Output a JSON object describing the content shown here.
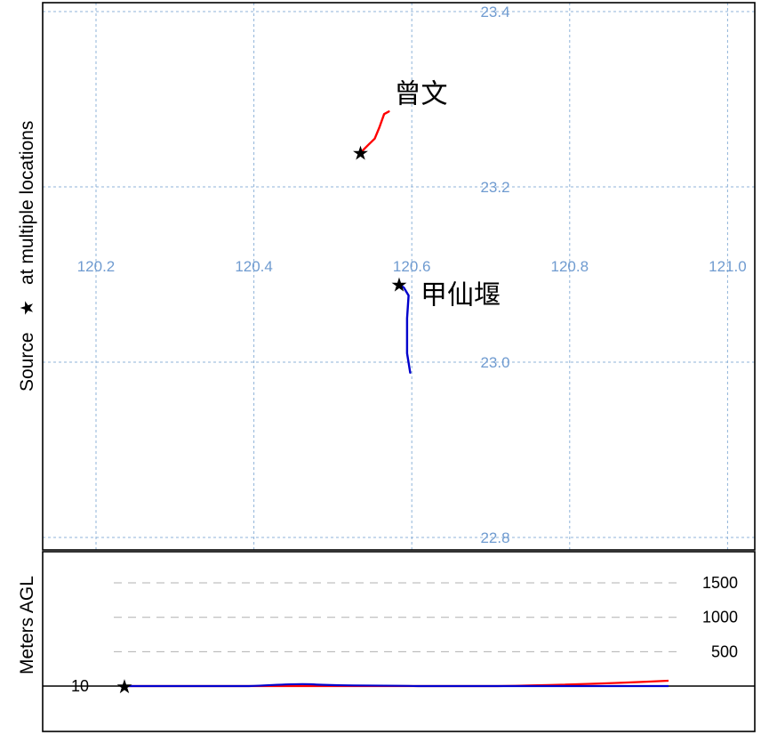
{
  "map": {
    "y_axis_label_prefix": "Source",
    "y_axis_label_suffix": "at multiple locations",
    "longitude_ticks": [
      "120.2",
      "120.4",
      "120.6",
      "120.8",
      "121.0"
    ],
    "latitude_ticks": [
      "23.4",
      "23.2",
      "23.0",
      "22.8"
    ],
    "longitude_values": [
      120.2,
      120.4,
      120.6,
      120.8,
      121.0
    ],
    "latitude_values": [
      23.4,
      23.2,
      23.0,
      22.8
    ],
    "trajectories": [
      {
        "label": "曾文",
        "color": "#ff0000",
        "source": {
          "lon": 120.535,
          "lat": 23.239
        },
        "path": [
          {
            "lon": 120.535,
            "lat": 23.239
          },
          {
            "lon": 120.545,
            "lat": 23.248
          },
          {
            "lon": 120.553,
            "lat": 23.255
          },
          {
            "lon": 120.559,
            "lat": 23.268
          },
          {
            "lon": 120.565,
            "lat": 23.283
          },
          {
            "lon": 120.571,
            "lat": 23.286
          }
        ]
      },
      {
        "label": "甲仙堰",
        "color": "#0000cc",
        "source": {
          "lon": 120.584,
          "lat": 23.089
        },
        "path": [
          {
            "lon": 120.584,
            "lat": 23.089
          },
          {
            "lon": 120.59,
            "lat": 23.085
          },
          {
            "lon": 120.596,
            "lat": 23.076
          },
          {
            "lon": 120.594,
            "lat": 23.05
          },
          {
            "lon": 120.594,
            "lat": 23.01
          },
          {
            "lon": 120.598,
            "lat": 22.988
          }
        ]
      }
    ]
  },
  "height_panel": {
    "y_axis_label": "Meters AGL",
    "ground_label": "10",
    "levels": [
      "1500",
      "1000",
      "500"
    ],
    "level_values": [
      1500,
      1000,
      500
    ]
  },
  "colors": {
    "grid": "#8fb3d9",
    "grid_label": "#6f9bd0",
    "trajectory_red": "#ff0000",
    "trajectory_blue": "#0000cc"
  }
}
